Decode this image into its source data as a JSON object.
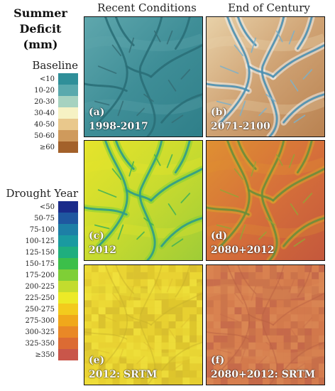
{
  "title": {
    "line1": "Summer",
    "line2": "Deficit (mm)"
  },
  "columns": [
    "Recent Conditions",
    "End of Century"
  ],
  "legends": [
    {
      "title": "Baseline",
      "entries": [
        {
          "label": "<10",
          "color": "#2f8f99"
        },
        {
          "label": "10-20",
          "color": "#5aa9ad"
        },
        {
          "label": "20-30",
          "color": "#a6d2c0"
        },
        {
          "label": "30-40",
          "color": "#f6f2c4"
        },
        {
          "label": "40-50",
          "color": "#e9c88c"
        },
        {
          "label": "50-60",
          "color": "#cf9a5c"
        },
        {
          "label": "≥60",
          "color": "#a3612a"
        }
      ]
    },
    {
      "title": "Drought Year",
      "entries": [
        {
          "label": "<50",
          "color": "#1a2b8a"
        },
        {
          "label": "50-75",
          "color": "#1f57a0"
        },
        {
          "label": "75-100",
          "color": "#1d7fa6"
        },
        {
          "label": "100-125",
          "color": "#1a9aa0"
        },
        {
          "label": "125-150",
          "color": "#1fae7e"
        },
        {
          "label": "150-175",
          "color": "#3cbf4a"
        },
        {
          "label": "175-200",
          "color": "#7fcf36"
        },
        {
          "label": "200-225",
          "color": "#c3dc2e"
        },
        {
          "label": "225-250",
          "color": "#ecea27"
        },
        {
          "label": "250-275",
          "color": "#f3cb1d"
        },
        {
          "label": "275-300",
          "color": "#f0a81b"
        },
        {
          "label": "300-325",
          "color": "#e98826"
        },
        {
          "label": "325-350",
          "color": "#dc6b33"
        },
        {
          "label": "≥350",
          "color": "#c9564a"
        }
      ]
    }
  ],
  "panels": [
    {
      "letter": "(a)",
      "label": "1998-2017",
      "style": "teal"
    },
    {
      "letter": "(b)",
      "label": "2071-2100",
      "style": "mixed"
    },
    {
      "letter": "(c)",
      "label": "2012",
      "style": "drought"
    },
    {
      "letter": "(d)",
      "label": "2080+2012",
      "style": "drought-future"
    },
    {
      "letter": "(e)",
      "label": "2012: SRTM",
      "style": "srtm"
    },
    {
      "letter": "(f)",
      "label": "2080+2012: SRTM",
      "style": "srtm-future"
    }
  ]
}
